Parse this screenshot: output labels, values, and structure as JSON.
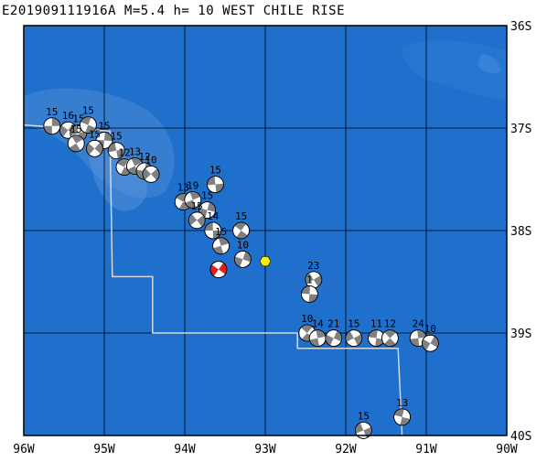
{
  "title": "E201909111916A M=5.4 h= 10 WEST CHILE RISE",
  "map": {
    "lon_range": [
      -96,
      -90
    ],
    "lat_range": [
      -40,
      -36
    ],
    "colors": {
      "ocean": "#1f6fcc",
      "shallow": "#4a8ad6",
      "deep": "#1a63c2",
      "grid": "#000000",
      "ridge": "#d8d8d8",
      "mainshock": "#e0201b",
      "marker": "#ffee00"
    },
    "lon_labels": [
      {
        "lon": -96,
        "text": "96W"
      },
      {
        "lon": -95,
        "text": "95W"
      },
      {
        "lon": -94,
        "text": "94W"
      },
      {
        "lon": -93,
        "text": "93W"
      },
      {
        "lon": -92,
        "text": "92W"
      },
      {
        "lon": -91,
        "text": "91W"
      },
      {
        "lon": -90,
        "text": "90W"
      }
    ],
    "lat_labels": [
      {
        "lat": -36,
        "text": "36S"
      },
      {
        "lat": -37,
        "text": "37S"
      },
      {
        "lat": -38,
        "text": "38S"
      },
      {
        "lat": -39,
        "text": "39S"
      },
      {
        "lat": -40,
        "text": "40S"
      }
    ],
    "ridge_path": [
      [
        -96.0,
        -36.97
      ],
      [
        -94.93,
        -37.03
      ],
      [
        -94.9,
        -38.45
      ],
      [
        -94.4,
        -38.45
      ],
      [
        -94.4,
        -39.0
      ],
      [
        -92.6,
        -39.0
      ],
      [
        -92.6,
        -39.15
      ],
      [
        -91.35,
        -39.15
      ],
      [
        -91.3,
        -40.0
      ]
    ],
    "hexagon": {
      "lon": -93.0,
      "lat": -38.3
    },
    "mainshock": {
      "lon": -93.58,
      "lat": -38.38
    },
    "events": [
      {
        "lon": -95.65,
        "lat": -36.98,
        "mag": "15"
      },
      {
        "lon": -95.45,
        "lat": -37.02,
        "mag": "16"
      },
      {
        "lon": -95.32,
        "lat": -37.05,
        "mag": "15"
      },
      {
        "lon": -95.2,
        "lat": -36.97,
        "mag": "15"
      },
      {
        "lon": -95.35,
        "lat": -37.15,
        "mag": "15"
      },
      {
        "lon": -95.0,
        "lat": -37.12,
        "mag": "15"
      },
      {
        "lon": -95.12,
        "lat": -37.2,
        "mag": "15"
      },
      {
        "lon": -94.85,
        "lat": -37.22,
        "mag": "15"
      },
      {
        "lon": -94.75,
        "lat": -37.38,
        "mag": "12"
      },
      {
        "lon": -94.62,
        "lat": -37.37,
        "mag": "13"
      },
      {
        "lon": -94.5,
        "lat": -37.42,
        "mag": "12"
      },
      {
        "lon": -94.42,
        "lat": -37.45,
        "mag": "10"
      },
      {
        "lon": -93.62,
        "lat": -37.55,
        "mag": "15"
      },
      {
        "lon": -94.02,
        "lat": -37.72,
        "mag": "13"
      },
      {
        "lon": -93.9,
        "lat": -37.7,
        "mag": "19"
      },
      {
        "lon": -93.72,
        "lat": -37.8,
        "mag": "15"
      },
      {
        "lon": -93.85,
        "lat": -37.9,
        "mag": "15"
      },
      {
        "lon": -93.65,
        "lat": -38.0,
        "mag": "14"
      },
      {
        "lon": -93.3,
        "lat": -38.0,
        "mag": "15"
      },
      {
        "lon": -93.55,
        "lat": -38.15,
        "mag": "15"
      },
      {
        "lon": -93.28,
        "lat": -38.28,
        "mag": "10"
      },
      {
        "lon": -92.4,
        "lat": -38.48,
        "mag": "23"
      },
      {
        "lon": -92.45,
        "lat": -38.62,
        "mag": "1"
      },
      {
        "lon": -92.48,
        "lat": -39.0,
        "mag": "10"
      },
      {
        "lon": -92.35,
        "lat": -39.05,
        "mag": "14"
      },
      {
        "lon": -92.15,
        "lat": -39.05,
        "mag": "21"
      },
      {
        "lon": -91.9,
        "lat": -39.05,
        "mag": "15"
      },
      {
        "lon": -91.62,
        "lat": -39.05,
        "mag": "11"
      },
      {
        "lon": -91.45,
        "lat": -39.05,
        "mag": "12"
      },
      {
        "lon": -91.1,
        "lat": -39.05,
        "mag": "24"
      },
      {
        "lon": -90.95,
        "lat": -39.1,
        "mag": "10"
      },
      {
        "lon": -91.78,
        "lat": -39.95,
        "mag": "15"
      },
      {
        "lon": -91.3,
        "lat": -39.82,
        "mag": "13"
      }
    ]
  }
}
